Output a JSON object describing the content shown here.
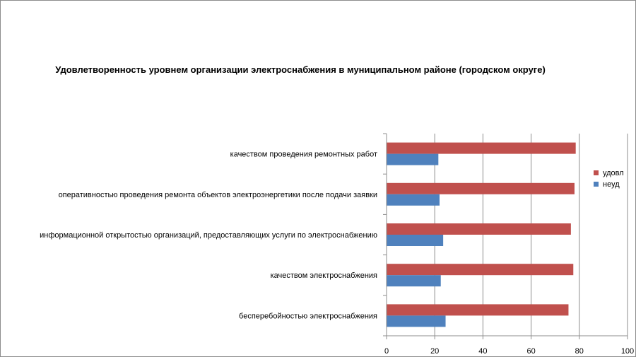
{
  "chart_data": {
    "type": "bar",
    "orientation": "horizontal",
    "title": "Удовлетворенность уровнем организации электроснабжения в муниципальном районе (городском округе)",
    "categories": [
      "бесперебойностью электроснабжения",
      "качеством электроснабжения",
      "информационной открытостью организаций, предоставляющих услуги по электроснабжению",
      "оперативностью проведения ремонта объектов электроэнергетики после подачи заявки",
      "качеством проведения ремонтных работ"
    ],
    "series": [
      {
        "name": "неуд",
        "color": "#4f81bd",
        "values": [
          24.5,
          22.5,
          23.5,
          22,
          21.5
        ]
      },
      {
        "name": "удовл",
        "color": "#c0504d",
        "values": [
          75.5,
          77.5,
          76.5,
          78,
          78.5
        ]
      }
    ],
    "xlim": [
      0,
      100
    ],
    "xticks": [
      0,
      20,
      40,
      60,
      80,
      100
    ],
    "grid": "vertical",
    "legend": {
      "position": "right",
      "order": [
        "удовл",
        "неуд"
      ]
    }
  }
}
